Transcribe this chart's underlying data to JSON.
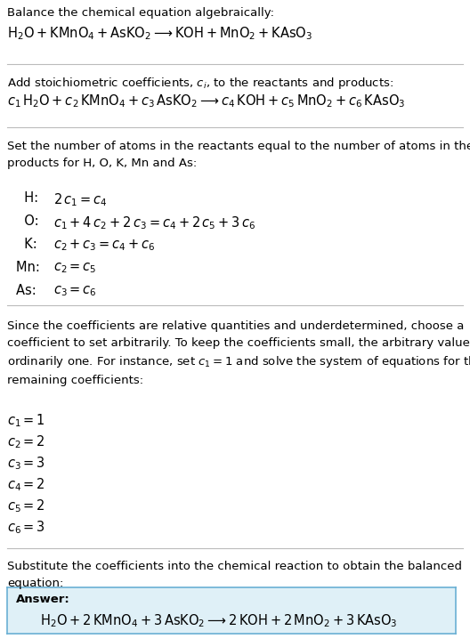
{
  "bg_color": "#ffffff",
  "answer_box_color": "#dff0f7",
  "answer_box_border": "#6ab0d4",
  "figsize": [
    5.28,
    7.18
  ],
  "dpi": 100,
  "title_line1": "Balance the chemical equation algebraically:",
  "eq1": "$\\mathrm{H_2O + KMnO_4 + AsKO_2} \\longrightarrow \\mathrm{KOH + MnO_2 + KAsO_3}$",
  "sec2_intro": "Add stoichiometric coefficients, $c_i$, to the reactants and products:",
  "eq2": "$c_1\\,\\mathrm{H_2O} + c_2\\,\\mathrm{KMnO_4} + c_3\\,\\mathrm{AsKO_2} \\longrightarrow c_4\\,\\mathrm{KOH} + c_5\\,\\mathrm{MnO_2} + c_6\\,\\mathrm{KAsO_3}$",
  "sec3_intro": "Set the number of atoms in the reactants equal to the number of atoms in the\nproducts for H, O, K, Mn and As:",
  "atom_eqs": [
    [
      "  H:  ",
      "$2\\,c_1 = c_4$"
    ],
    [
      "  O:  ",
      "$c_1 + 4\\,c_2 + 2\\,c_3 = c_4 + 2\\,c_5 + 3\\,c_6$"
    ],
    [
      "  K:  ",
      "$c_2 + c_3 = c_4 + c_6$"
    ],
    [
      "Mn:  ",
      "$c_2 = c_5$"
    ],
    [
      "As:  ",
      "$c_3 = c_6$"
    ]
  ],
  "sec4_intro": "Since the coefficients are relative quantities and underdetermined, choose a\ncoefficient to set arbitrarily. To keep the coefficients small, the arbitrary value is\nordinarily one. For instance, set $c_1 = 1$ and solve the system of equations for the\nremaining coefficients:",
  "coeffs": [
    "$c_1 = 1$",
    "$c_2 = 2$",
    "$c_3 = 3$",
    "$c_4 = 2$",
    "$c_5 = 2$",
    "$c_6 = 3$"
  ],
  "sec5_intro": "Substitute the coefficients into the chemical reaction to obtain the balanced\nequation:",
  "answer_label": "Answer:",
  "answer_eq": "$\\mathrm{H_2O} + 2\\,\\mathrm{KMnO_4} + 3\\,\\mathrm{AsKO_2} \\longrightarrow 2\\,\\mathrm{KOH} + 2\\,\\mathrm{MnO_2} + 3\\,\\mathrm{KAsO_3}$"
}
